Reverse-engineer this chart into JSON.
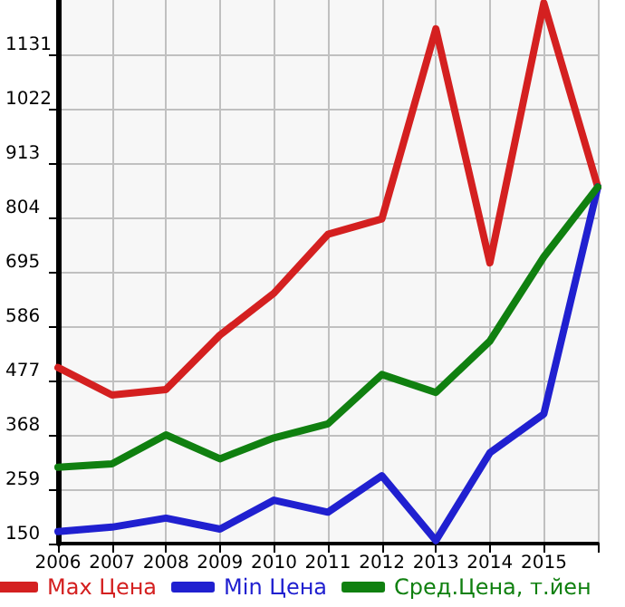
{
  "chart_data": {
    "type": "line",
    "categories": [
      "2006",
      "2007",
      "2008",
      "2009",
      "2010",
      "2011",
      "2012",
      "2013",
      "2014",
      "2015",
      null
    ],
    "series": [
      {
        "name": "Max Цена",
        "color": "#d42020",
        "values": [
          503,
          448,
          459,
          568,
          652,
          770,
          801,
          1182,
          713,
          1234,
          865
        ]
      },
      {
        "name": "Min Цена",
        "color": "#2020d0",
        "values": [
          174,
          183,
          201,
          179,
          237,
          213,
          286,
          156,
          332,
          410,
          865
        ]
      },
      {
        "name": "Сред.Цена, т.йен",
        "color": "#108010",
        "values": [
          303,
          310,
          368,
          320,
          362,
          390,
          489,
          453,
          556,
          725,
          865
        ]
      }
    ],
    "ylim": [
      150,
      1240
    ],
    "yticks": [
      150,
      259,
      368,
      477,
      586,
      695,
      804,
      913,
      1022,
      1131
    ],
    "grid": true,
    "legend": "bottom",
    "marker": "none",
    "line_style": "solid"
  }
}
